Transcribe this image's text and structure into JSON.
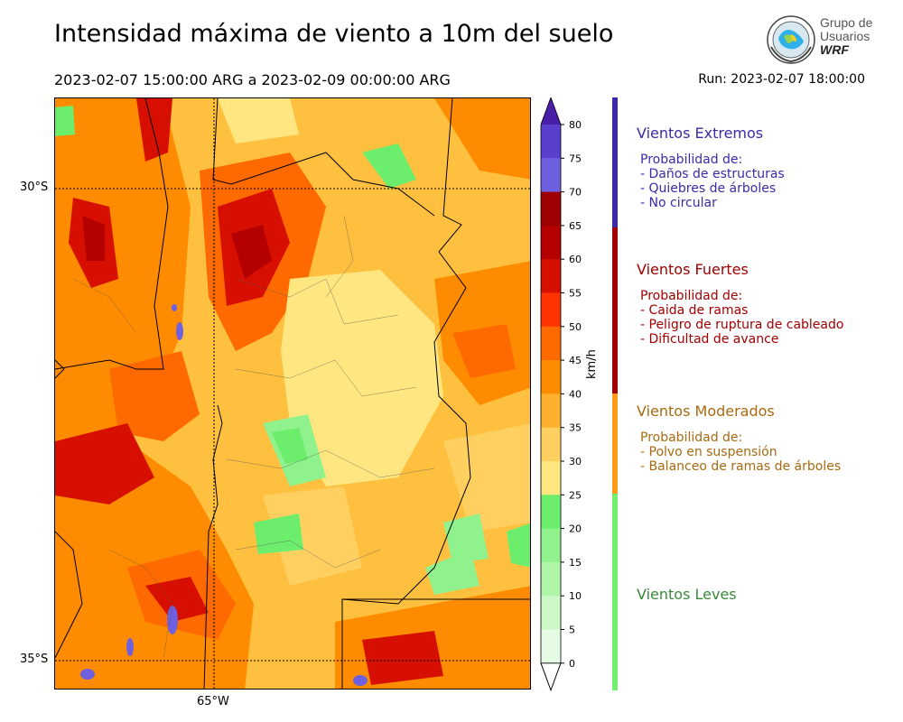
{
  "title": "Intensidad máxima de viento a 10m del suelo",
  "period": "2023-02-07 15:00:00 ARG  a  2023-02-09 00:00:00 ARG",
  "run": "Run: 2023-02-07 18:00:00",
  "logo": {
    "line1": "Grupo de",
    "line2": "Usuarios",
    "line3": "WRF"
  },
  "map": {
    "lat_labels": [
      "30°S",
      "35°S"
    ],
    "lon_labels": [
      "65°W"
    ]
  },
  "colorbar": {
    "unit": "km/h",
    "ticks": [
      "80",
      "75",
      "70",
      "65",
      "60",
      "55",
      "50",
      "45",
      "40",
      "35",
      "30",
      "25",
      "20",
      "15",
      "10",
      "5",
      "0"
    ],
    "colors": [
      "#4a1fa8",
      "#5a3fcf",
      "#6f60e0",
      "#9c0000",
      "#b40000",
      "#d60f00",
      "#ff3300",
      "#ff6a00",
      "#ff8c00",
      "#ffb02e",
      "#ffd060",
      "#ffe680",
      "#6cee6c",
      "#8ff28c",
      "#aef5a8",
      "#cbf8c6",
      "#e6fbe3"
    ]
  },
  "categories": [
    {
      "title": "Vientos Extremos",
      "color": "#3a2aa8",
      "bar_color": "#3a2aa8",
      "desc_header": "Probabilidad de:",
      "items": [
        "- Daños de estructuras",
        "- Quiebres de árboles",
        "- No circular"
      ]
    },
    {
      "title": "Vientos Fuertes",
      "color": "#a00000",
      "bar_color": "#a00000",
      "desc_header": "Probabilidad de:",
      "items": [
        "- Caida de ramas",
        "- Peligro de ruptura de cableado",
        "- Dificultad de avance"
      ]
    },
    {
      "title": "Vientos Moderados",
      "color": "#a86a10",
      "bar_color": "#ff9a1a",
      "desc_header": "Probabilidad de:",
      "items": [
        "- Polvo en suspensión",
        "- Balanceo de ramas de árboles"
      ]
    },
    {
      "title": "Vientos Leves",
      "color": "#3a8a3a",
      "bar_color": "#74ee6e",
      "desc_header": "",
      "items": []
    }
  ]
}
